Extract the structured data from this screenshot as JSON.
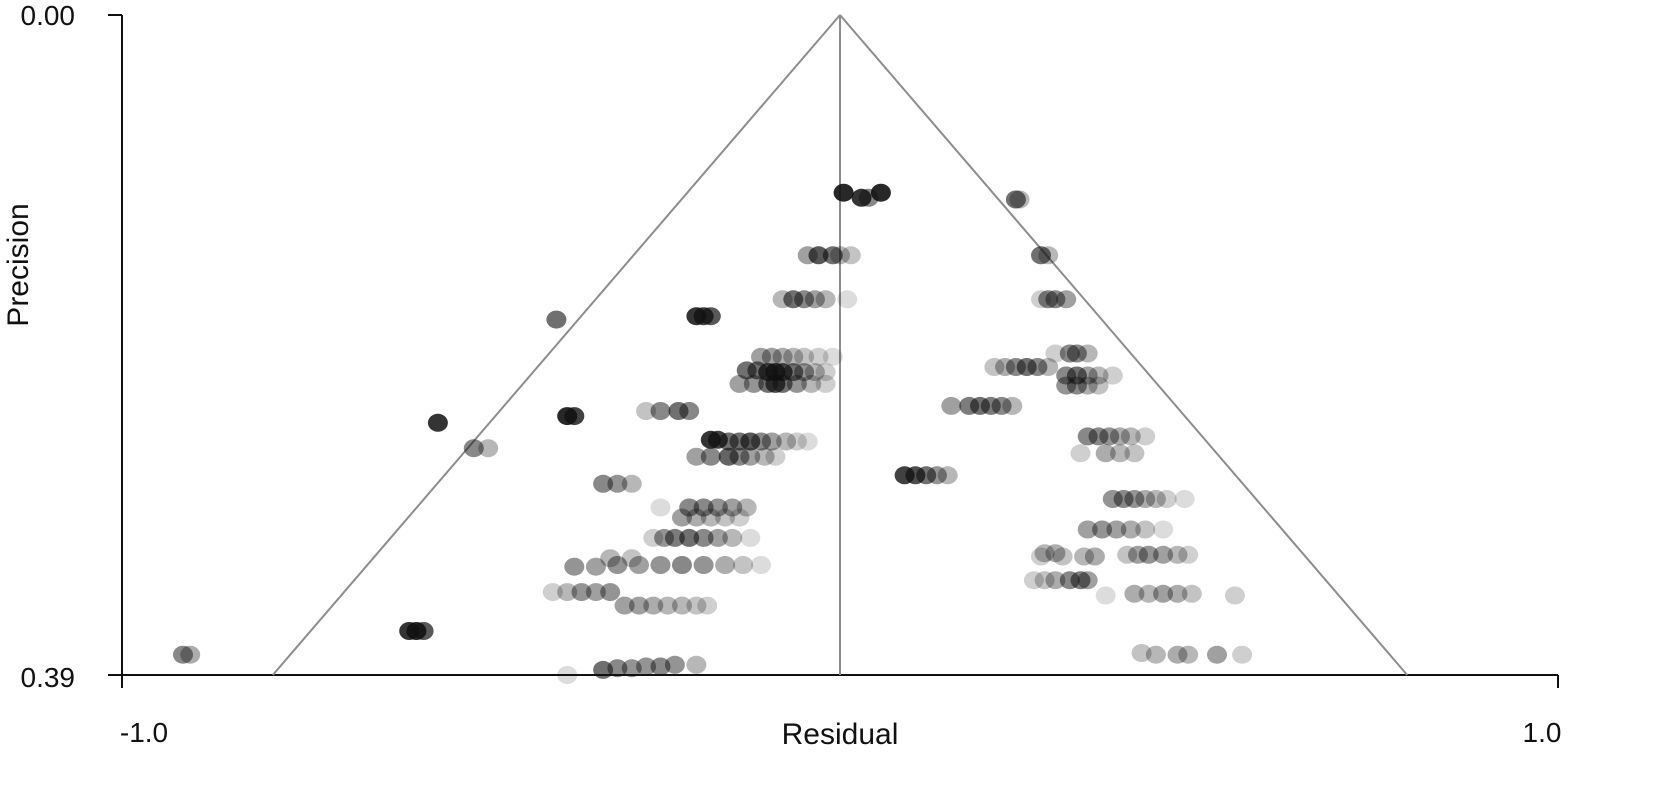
{
  "chart_data": {
    "type": "scatter",
    "title": "",
    "xlabel": "Residual",
    "ylabel": "Precision",
    "xlim": [
      -1.0,
      1.0
    ],
    "ylim": [
      0.0,
      0.39
    ],
    "y_inverted": true,
    "x_tick_labels": [
      "-1.0",
      "1.0"
    ],
    "y_tick_labels": [
      "0.00",
      "0.39"
    ],
    "funnel": {
      "apex": [
        0.0,
        0.0
      ],
      "base": [
        -0.79,
        0.79
      ],
      "center_line": 0.0
    },
    "point_color": "#111111",
    "line_color": "#8c8c8c",
    "points": [
      [
        0.005,
        0.105,
        0.9
      ],
      [
        0.03,
        0.108,
        0.85
      ],
      [
        0.057,
        0.105,
        0.9
      ],
      [
        0.04,
        0.108,
        0.5
      ],
      [
        0.245,
        0.109,
        0.6
      ],
      [
        0.25,
        0.109,
        0.3
      ],
      [
        -0.03,
        0.142,
        0.7
      ],
      [
        -0.01,
        0.142,
        0.6
      ],
      [
        -0.045,
        0.142,
        0.4
      ],
      [
        0.0,
        0.142,
        0.3
      ],
      [
        0.015,
        0.142,
        0.25
      ],
      [
        0.28,
        0.142,
        0.6
      ],
      [
        0.29,
        0.142,
        0.3
      ],
      [
        -0.065,
        0.168,
        0.6
      ],
      [
        -0.05,
        0.168,
        0.5
      ],
      [
        -0.035,
        0.168,
        0.4
      ],
      [
        -0.08,
        0.168,
        0.3
      ],
      [
        -0.02,
        0.168,
        0.3
      ],
      [
        0.01,
        0.168,
        0.15
      ],
      [
        0.29,
        0.168,
        0.5
      ],
      [
        0.3,
        0.168,
        0.5
      ],
      [
        0.315,
        0.168,
        0.4
      ],
      [
        0.28,
        0.168,
        0.2
      ],
      [
        -0.395,
        0.18,
        0.6
      ],
      [
        -0.2,
        0.178,
        0.85
      ],
      [
        -0.19,
        0.178,
        0.8
      ],
      [
        -0.18,
        0.178,
        0.7
      ],
      [
        -0.11,
        0.202,
        0.4
      ],
      [
        -0.095,
        0.202,
        0.4
      ],
      [
        -0.08,
        0.202,
        0.35
      ],
      [
        -0.065,
        0.202,
        0.3
      ],
      [
        -0.05,
        0.202,
        0.25
      ],
      [
        -0.03,
        0.202,
        0.2
      ],
      [
        -0.01,
        0.202,
        0.15
      ],
      [
        -0.13,
        0.21,
        0.6
      ],
      [
        -0.115,
        0.21,
        0.6
      ],
      [
        -0.1,
        0.211,
        0.8
      ],
      [
        -0.09,
        0.211,
        0.85
      ],
      [
        -0.08,
        0.211,
        0.75
      ],
      [
        -0.065,
        0.211,
        0.6
      ],
      [
        -0.05,
        0.211,
        0.45
      ],
      [
        -0.035,
        0.211,
        0.3
      ],
      [
        -0.02,
        0.211,
        0.2
      ],
      [
        -0.14,
        0.218,
        0.4
      ],
      [
        -0.12,
        0.218,
        0.45
      ],
      [
        -0.1,
        0.218,
        0.6
      ],
      [
        -0.09,
        0.218,
        0.75
      ],
      [
        -0.08,
        0.218,
        0.6
      ],
      [
        -0.06,
        0.218,
        0.45
      ],
      [
        -0.04,
        0.218,
        0.3
      ],
      [
        -0.02,
        0.218,
        0.2
      ],
      [
        0.32,
        0.2,
        0.5
      ],
      [
        0.33,
        0.2,
        0.5
      ],
      [
        0.345,
        0.2,
        0.3
      ],
      [
        0.3,
        0.2,
        0.2
      ],
      [
        0.245,
        0.208,
        0.5
      ],
      [
        0.26,
        0.208,
        0.6
      ],
      [
        0.275,
        0.208,
        0.5
      ],
      [
        0.23,
        0.208,
        0.35
      ],
      [
        0.29,
        0.208,
        0.3
      ],
      [
        0.215,
        0.208,
        0.25
      ],
      [
        0.315,
        0.213,
        0.5
      ],
      [
        0.33,
        0.213,
        0.6
      ],
      [
        0.345,
        0.213,
        0.4
      ],
      [
        0.36,
        0.213,
        0.3
      ],
      [
        0.38,
        0.213,
        0.2
      ],
      [
        0.315,
        0.219,
        0.45
      ],
      [
        0.33,
        0.219,
        0.5
      ],
      [
        0.345,
        0.219,
        0.35
      ],
      [
        0.36,
        0.219,
        0.25
      ],
      [
        -0.56,
        0.241,
        0.85
      ],
      [
        -0.38,
        0.237,
        0.9
      ],
      [
        -0.37,
        0.237,
        0.8
      ],
      [
        -0.25,
        0.234,
        0.5
      ],
      [
        -0.225,
        0.234,
        0.6
      ],
      [
        -0.21,
        0.234,
        0.5
      ],
      [
        -0.27,
        0.234,
        0.25
      ],
      [
        0.18,
        0.231,
        0.55
      ],
      [
        0.195,
        0.231,
        0.6
      ],
      [
        0.21,
        0.231,
        0.55
      ],
      [
        0.225,
        0.231,
        0.5
      ],
      [
        0.155,
        0.231,
        0.4
      ],
      [
        0.24,
        0.231,
        0.3
      ],
      [
        -0.51,
        0.256,
        0.5
      ],
      [
        -0.49,
        0.256,
        0.3
      ],
      [
        -0.18,
        0.251,
        0.85
      ],
      [
        -0.17,
        0.251,
        0.8
      ],
      [
        -0.155,
        0.252,
        0.6
      ],
      [
        -0.14,
        0.252,
        0.6
      ],
      [
        -0.125,
        0.252,
        0.7
      ],
      [
        -0.11,
        0.252,
        0.5
      ],
      [
        -0.095,
        0.252,
        0.4
      ],
      [
        -0.075,
        0.252,
        0.3
      ],
      [
        -0.06,
        0.252,
        0.2
      ],
      [
        -0.045,
        0.252,
        0.15
      ],
      [
        -0.2,
        0.261,
        0.4
      ],
      [
        -0.18,
        0.261,
        0.5
      ],
      [
        -0.155,
        0.261,
        0.65
      ],
      [
        -0.14,
        0.261,
        0.5
      ],
      [
        -0.125,
        0.261,
        0.4
      ],
      [
        -0.105,
        0.261,
        0.3
      ],
      [
        -0.09,
        0.261,
        0.2
      ],
      [
        0.345,
        0.249,
        0.5
      ],
      [
        0.36,
        0.249,
        0.5
      ],
      [
        0.375,
        0.249,
        0.45
      ],
      [
        0.39,
        0.249,
        0.35
      ],
      [
        0.405,
        0.249,
        0.3
      ],
      [
        0.425,
        0.249,
        0.2
      ],
      [
        0.37,
        0.259,
        0.35
      ],
      [
        0.39,
        0.259,
        0.3
      ],
      [
        0.41,
        0.259,
        0.25
      ],
      [
        0.335,
        0.259,
        0.2
      ],
      [
        0.09,
        0.272,
        0.8
      ],
      [
        0.105,
        0.272,
        0.75
      ],
      [
        0.12,
        0.272,
        0.6
      ],
      [
        0.135,
        0.272,
        0.45
      ],
      [
        0.15,
        0.272,
        0.3
      ],
      [
        -0.33,
        0.277,
        0.5
      ],
      [
        -0.31,
        0.277,
        0.45
      ],
      [
        -0.29,
        0.277,
        0.3
      ],
      [
        -0.21,
        0.291,
        0.5
      ],
      [
        -0.19,
        0.291,
        0.5
      ],
      [
        -0.17,
        0.291,
        0.45
      ],
      [
        -0.15,
        0.291,
        0.4
      ],
      [
        -0.13,
        0.291,
        0.3
      ],
      [
        -0.25,
        0.291,
        0.15
      ],
      [
        -0.22,
        0.297,
        0.4
      ],
      [
        -0.2,
        0.297,
        0.35
      ],
      [
        -0.18,
        0.297,
        0.3
      ],
      [
        -0.16,
        0.297,
        0.25
      ],
      [
        -0.14,
        0.297,
        0.2
      ],
      [
        0.38,
        0.286,
        0.45
      ],
      [
        0.395,
        0.286,
        0.5
      ],
      [
        0.41,
        0.286,
        0.45
      ],
      [
        0.425,
        0.286,
        0.35
      ],
      [
        0.44,
        0.286,
        0.3
      ],
      [
        0.455,
        0.286,
        0.2
      ],
      [
        0.48,
        0.286,
        0.15
      ],
      [
        -0.245,
        0.309,
        0.45
      ],
      [
        -0.23,
        0.309,
        0.55
      ],
      [
        -0.21,
        0.309,
        0.6
      ],
      [
        -0.19,
        0.309,
        0.5
      ],
      [
        -0.17,
        0.309,
        0.4
      ],
      [
        -0.15,
        0.309,
        0.3
      ],
      [
        -0.26,
        0.309,
        0.2
      ],
      [
        -0.125,
        0.309,
        0.15
      ],
      [
        -0.37,
        0.326,
        0.45
      ],
      [
        -0.34,
        0.326,
        0.4
      ],
      [
        -0.31,
        0.325,
        0.45
      ],
      [
        -0.28,
        0.325,
        0.4
      ],
      [
        -0.25,
        0.325,
        0.45
      ],
      [
        -0.22,
        0.325,
        0.5
      ],
      [
        -0.19,
        0.325,
        0.45
      ],
      [
        -0.16,
        0.325,
        0.35
      ],
      [
        -0.135,
        0.325,
        0.25
      ],
      [
        -0.11,
        0.325,
        0.15
      ],
      [
        -0.32,
        0.321,
        0.3
      ],
      [
        -0.29,
        0.321,
        0.25
      ],
      [
        0.345,
        0.304,
        0.4
      ],
      [
        0.365,
        0.304,
        0.45
      ],
      [
        0.385,
        0.304,
        0.4
      ],
      [
        0.405,
        0.304,
        0.35
      ],
      [
        0.425,
        0.304,
        0.25
      ],
      [
        0.45,
        0.304,
        0.15
      ],
      [
        0.34,
        0.32,
        0.3
      ],
      [
        0.355,
        0.32,
        0.35
      ],
      [
        0.31,
        0.32,
        0.25
      ],
      [
        0.28,
        0.32,
        0.2
      ],
      [
        0.415,
        0.319,
        0.4
      ],
      [
        0.43,
        0.319,
        0.45
      ],
      [
        0.45,
        0.319,
        0.4
      ],
      [
        0.47,
        0.319,
        0.3
      ],
      [
        0.485,
        0.319,
        0.2
      ],
      [
        0.4,
        0.319,
        0.25
      ],
      [
        0.3,
        0.318,
        0.35
      ],
      [
        0.285,
        0.318,
        0.3
      ],
      [
        0.32,
        0.334,
        0.5
      ],
      [
        0.335,
        0.334,
        0.55
      ],
      [
        0.345,
        0.334,
        0.4
      ],
      [
        0.3,
        0.334,
        0.35
      ],
      [
        0.285,
        0.334,
        0.25
      ],
      [
        0.27,
        0.334,
        0.2
      ],
      [
        -0.36,
        0.341,
        0.45
      ],
      [
        -0.34,
        0.341,
        0.4
      ],
      [
        -0.32,
        0.341,
        0.45
      ],
      [
        -0.38,
        0.341,
        0.3
      ],
      [
        -0.4,
        0.341,
        0.2
      ],
      [
        0.41,
        0.342,
        0.35
      ],
      [
        0.43,
        0.342,
        0.3
      ],
      [
        0.45,
        0.342,
        0.4
      ],
      [
        0.47,
        0.342,
        0.35
      ],
      [
        0.49,
        0.342,
        0.25
      ],
      [
        0.55,
        0.343,
        0.2
      ],
      [
        0.37,
        0.343,
        0.15
      ],
      [
        -0.3,
        0.349,
        0.4
      ],
      [
        -0.28,
        0.349,
        0.4
      ],
      [
        -0.26,
        0.349,
        0.35
      ],
      [
        -0.24,
        0.349,
        0.3
      ],
      [
        -0.22,
        0.349,
        0.3
      ],
      [
        -0.2,
        0.349,
        0.25
      ],
      [
        -0.185,
        0.349,
        0.2
      ],
      [
        -0.6,
        0.364,
        0.85
      ],
      [
        -0.59,
        0.364,
        0.9
      ],
      [
        -0.58,
        0.364,
        0.7
      ],
      [
        -0.915,
        0.378,
        0.5
      ],
      [
        -0.905,
        0.378,
        0.35
      ],
      [
        0.42,
        0.377,
        0.25
      ],
      [
        0.44,
        0.378,
        0.3
      ],
      [
        0.47,
        0.378,
        0.35
      ],
      [
        0.485,
        0.378,
        0.3
      ],
      [
        0.525,
        0.378,
        0.4
      ],
      [
        0.56,
        0.378,
        0.2
      ],
      [
        -0.33,
        0.387,
        0.6
      ],
      [
        -0.31,
        0.386,
        0.5
      ],
      [
        -0.29,
        0.386,
        0.45
      ],
      [
        -0.27,
        0.385,
        0.45
      ],
      [
        -0.25,
        0.385,
        0.5
      ],
      [
        -0.23,
        0.384,
        0.45
      ],
      [
        -0.2,
        0.384,
        0.3
      ],
      [
        -0.38,
        0.39,
        0.15
      ]
    ]
  }
}
